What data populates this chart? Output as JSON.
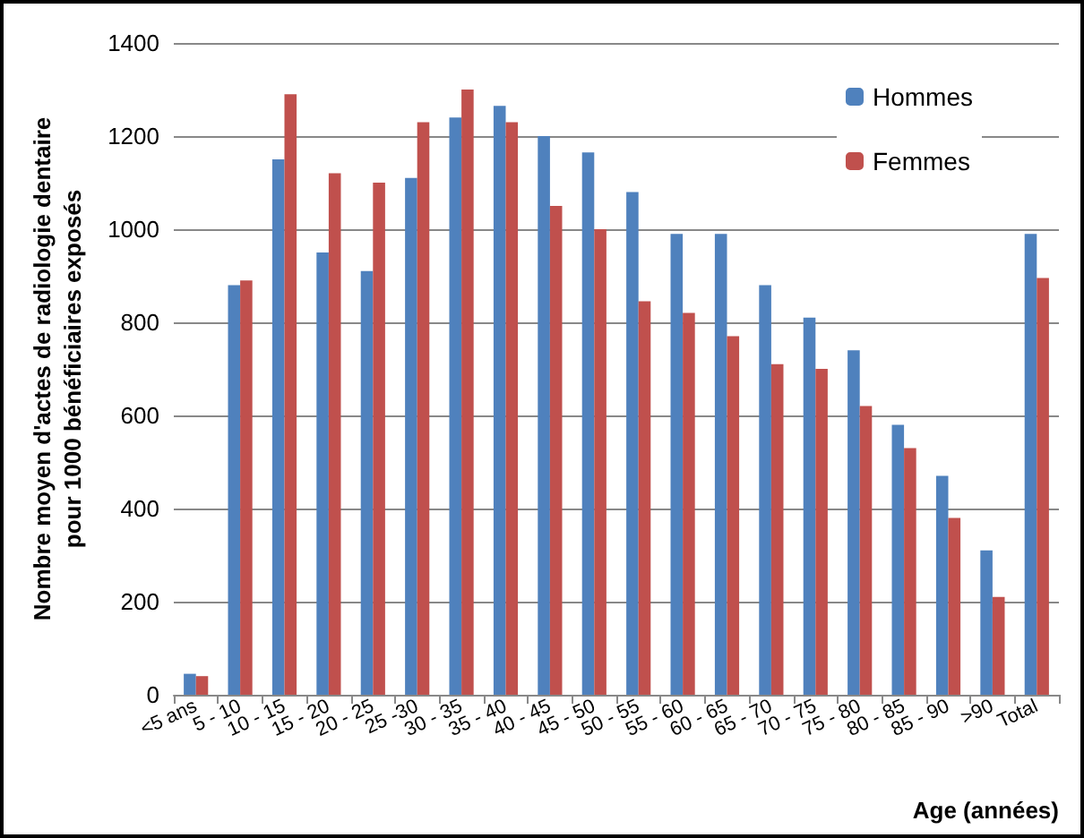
{
  "chart_data": {
    "type": "bar",
    "xlabel": "Age (années)",
    "ylabel": "Nombre moyen d'actes de radiologie dentaire\npour 1000 bénéficiaires exposés",
    "categories": [
      "<5 ans",
      "5 - 10",
      "10 - 15",
      "15 - 20",
      "20 - 25",
      "25 -30",
      "30 - 35",
      "35 - 40",
      "40 - 45",
      "45 - 50",
      "50 - 55",
      "55 - 60",
      "60 - 65",
      "65 - 70",
      "70 - 75",
      "75 - 80",
      "80 - 85",
      "85 - 90",
      ">90",
      "Total"
    ],
    "series": [
      {
        "name": "Hommes",
        "color": "#4f81bd",
        "values": [
          45,
          880,
          1150,
          950,
          910,
          1110,
          1240,
          1265,
          1200,
          1165,
          1080,
          990,
          990,
          880,
          810,
          740,
          580,
          470,
          310,
          990
        ]
      },
      {
        "name": "Femmes",
        "color": "#c0504d",
        "values": [
          40,
          890,
          1290,
          1120,
          1100,
          1230,
          1300,
          1230,
          1050,
          1000,
          845,
          820,
          770,
          710,
          700,
          620,
          530,
          380,
          210,
          895
        ]
      }
    ],
    "ylim": [
      0,
      1400
    ],
    "yticks": [
      0,
      200,
      400,
      600,
      800,
      1000,
      1200,
      1400
    ],
    "grid": "y",
    "legend": "top right"
  }
}
